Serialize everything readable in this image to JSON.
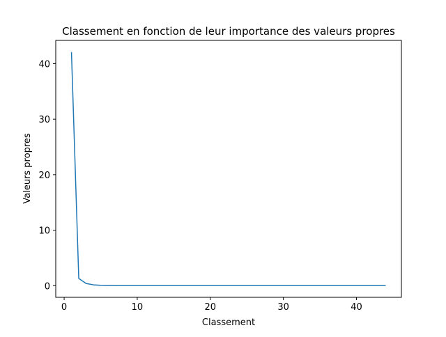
{
  "chart_data": {
    "type": "line",
    "title": "Classement en fonction de leur importance des valeurs propres",
    "xlabel": "Classement",
    "ylabel": "Valeurs propres",
    "xlim": [
      -1.15,
      46.15
    ],
    "ylim": [
      -2.1,
      44.2
    ],
    "xticks": [
      0,
      10,
      20,
      30,
      40
    ],
    "yticks": [
      0,
      10,
      20,
      30,
      40
    ],
    "grid": false,
    "line_color": "#1f77b4",
    "series": [
      {
        "x": [
          1,
          2,
          3,
          4,
          5,
          6,
          7,
          8,
          9,
          10,
          11,
          12,
          13,
          14,
          15,
          16,
          17,
          18,
          19,
          20,
          21,
          22,
          23,
          24,
          25,
          26,
          27,
          28,
          29,
          30,
          31,
          32,
          33,
          34,
          35,
          36,
          37,
          38,
          39,
          40,
          41,
          42,
          43,
          44
        ],
        "values": [
          42.1,
          1.3,
          0.4,
          0.15,
          0.07,
          0.04,
          0.02,
          0.015,
          0.01,
          0.01,
          0.01,
          0.01,
          0.01,
          0.01,
          0.01,
          0.01,
          0.01,
          0.01,
          0.01,
          0.01,
          0.01,
          0.01,
          0.01,
          0.01,
          0.01,
          0.01,
          0.01,
          0.01,
          0.01,
          0.01,
          0.01,
          0.01,
          0.01,
          0.01,
          0.01,
          0.01,
          0.01,
          0.01,
          0.01,
          0.01,
          0.01,
          0.01,
          0.01,
          0.01
        ]
      }
    ]
  }
}
